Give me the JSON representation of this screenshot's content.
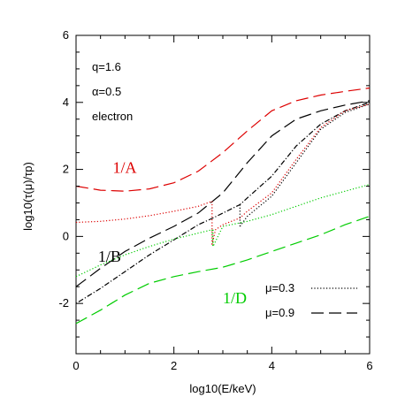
{
  "chart_data": {
    "type": "line",
    "xlabel": "log10(E/keV)",
    "ylabel": "log10(τ(μ)/τp)",
    "xlim": [
      0,
      6
    ],
    "ylim": [
      -3.5,
      6
    ],
    "xticks": [
      0,
      2,
      4,
      6
    ],
    "yticks": [
      -2,
      0,
      2,
      4,
      6
    ],
    "grid": false,
    "annotations": [
      "q=1.6",
      "α=0.5",
      "electron"
    ],
    "curve_labels": [
      {
        "text": "1/A",
        "color": "#dd0000",
        "x": 0.75,
        "y": 1.9
      },
      {
        "text": "1/B",
        "color": "#000000",
        "x": 0.45,
        "y": -0.75
      },
      {
        "text": "1/D",
        "color": "#00cc00",
        "x": 3.0,
        "y": -2.0
      }
    ],
    "legend": {
      "placement": "bottom-right",
      "entries": [
        {
          "label": "μ=0.3",
          "style": "dotted"
        },
        {
          "label": "μ=0.9",
          "style": "long-dash"
        }
      ]
    },
    "series": [
      {
        "curve": "A",
        "color": "#dd0000",
        "style": "long-dash",
        "x": [
          0,
          0.5,
          1,
          1.5,
          2,
          2.5,
          3,
          3.5,
          4,
          4.5,
          5,
          5.5,
          6
        ],
        "y": [
          1.5,
          1.38,
          1.35,
          1.42,
          1.6,
          1.95,
          2.5,
          3.15,
          3.75,
          4.05,
          4.22,
          4.33,
          4.43
        ]
      },
      {
        "curve": "B",
        "mu": 0.9,
        "color": "#000000",
        "style": "long-dash",
        "x": [
          0,
          0.5,
          1,
          1.5,
          2,
          2.5,
          3,
          3.5,
          4,
          4.5,
          5,
          5.5,
          6
        ],
        "y": [
          -1.5,
          -0.95,
          -0.45,
          -0.05,
          0.3,
          0.7,
          1.3,
          2.2,
          3.0,
          3.5,
          3.75,
          3.92,
          4.05
        ]
      },
      {
        "curve": "B",
        "mu": 0.3,
        "color": "#000000",
        "style": "dot-dash",
        "x": [
          0,
          0.5,
          1,
          1.5,
          2,
          2.5,
          2.8,
          3.35,
          3.5,
          4,
          4.5,
          5,
          5.5,
          6
        ],
        "y": [
          -2.0,
          -1.55,
          -1.05,
          -0.55,
          -0.1,
          0.35,
          0.55,
          0.95,
          1.15,
          1.8,
          2.7,
          3.35,
          3.75,
          4.0
        ]
      },
      {
        "curve": "B",
        "mu": 0.3,
        "color": "#000000",
        "style": "dotted",
        "x": [
          3.35,
          3.5,
          4,
          4.5,
          5,
          5.5,
          6
        ],
        "y": [
          0.3,
          0.6,
          1.2,
          2.2,
          3.2,
          3.7,
          3.95
        ]
      },
      {
        "curve": "A",
        "mu": 0.3,
        "color": "#dd0000",
        "style": "dotted",
        "x": [
          0,
          0.5,
          1,
          1.5,
          2,
          2.5,
          2.78
        ],
        "y": [
          0.42,
          0.45,
          0.52,
          0.62,
          0.75,
          0.9,
          1.05
        ]
      },
      {
        "curve": "A",
        "mu": 0.3,
        "color": "#dd0000",
        "style": "dotted",
        "x": [
          2.78,
          2.85,
          3.0,
          3.35,
          3.5,
          4,
          4.5,
          5,
          5.5,
          6
        ],
        "y": [
          -0.25,
          0.2,
          0.35,
          0.55,
          0.75,
          1.3,
          2.3,
          3.25,
          3.75,
          3.95
        ]
      },
      {
        "curve": "D",
        "mu": 0.3,
        "color": "#00cc00",
        "style": "dotted",
        "x": [
          0,
          0.5,
          1,
          1.5,
          2,
          2.5,
          2.78,
          2.8,
          3.0,
          3.5,
          4,
          4.5,
          5,
          5.5,
          6
        ],
        "y": [
          -1.2,
          -0.85,
          -0.55,
          -0.3,
          -0.08,
          0.1,
          0.2,
          -0.3,
          0.3,
          0.45,
          0.65,
          0.9,
          1.15,
          1.35,
          1.55
        ]
      },
      {
        "curve": "D",
        "mu": 0.9,
        "color": "#00cc00",
        "style": "long-dash",
        "x": [
          0,
          0.5,
          1,
          1.5,
          2,
          2.5,
          3,
          3.5,
          4,
          4.5,
          5,
          5.5,
          6
        ],
        "y": [
          -2.6,
          -2.2,
          -1.75,
          -1.4,
          -1.2,
          -1.05,
          -0.92,
          -0.7,
          -0.45,
          -0.2,
          0.05,
          0.35,
          0.6
        ]
      }
    ]
  }
}
